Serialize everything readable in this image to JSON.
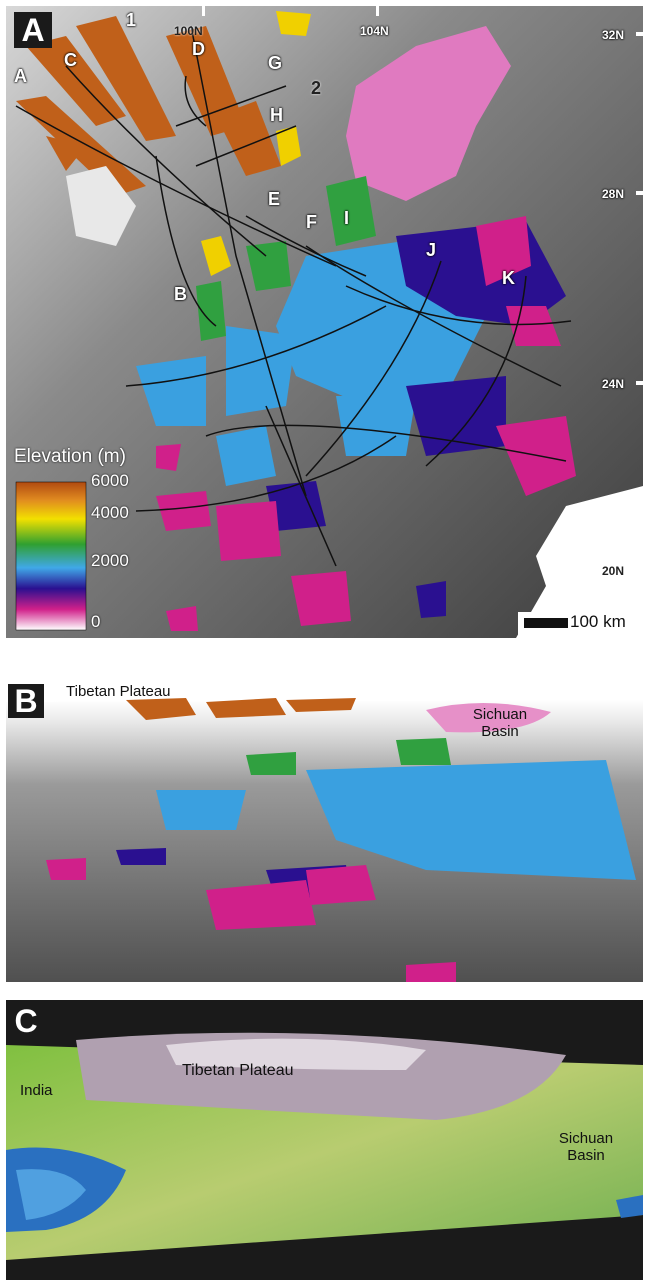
{
  "panelA": {
    "letter": "A",
    "lines": [
      "A",
      "B",
      "C",
      "D",
      "E",
      "F",
      "G",
      "H",
      "I",
      "J",
      "K",
      "1",
      "2"
    ],
    "longitudes": [
      "100N",
      "104N"
    ],
    "latitudes": [
      "32N",
      "28N",
      "24N",
      "20N"
    ],
    "legend": {
      "title": "Elevation (m)",
      "ticks": [
        "6000",
        "4000",
        "2000",
        "0"
      ],
      "colors": [
        "#b8540e",
        "#e6b800",
        "#f0e000",
        "#2aa83a",
        "#3aa0e0",
        "#2a1090",
        "#d0208a",
        "#ffffff"
      ]
    },
    "scale": "100 km"
  },
  "panelB": {
    "letter": "B",
    "labels": [
      "Tibetan Plateau",
      "Sichuan Basin"
    ]
  },
  "panelC": {
    "letter": "C",
    "labels": [
      "India",
      "Tibetan Plateau",
      "Sichuan Basin"
    ]
  }
}
